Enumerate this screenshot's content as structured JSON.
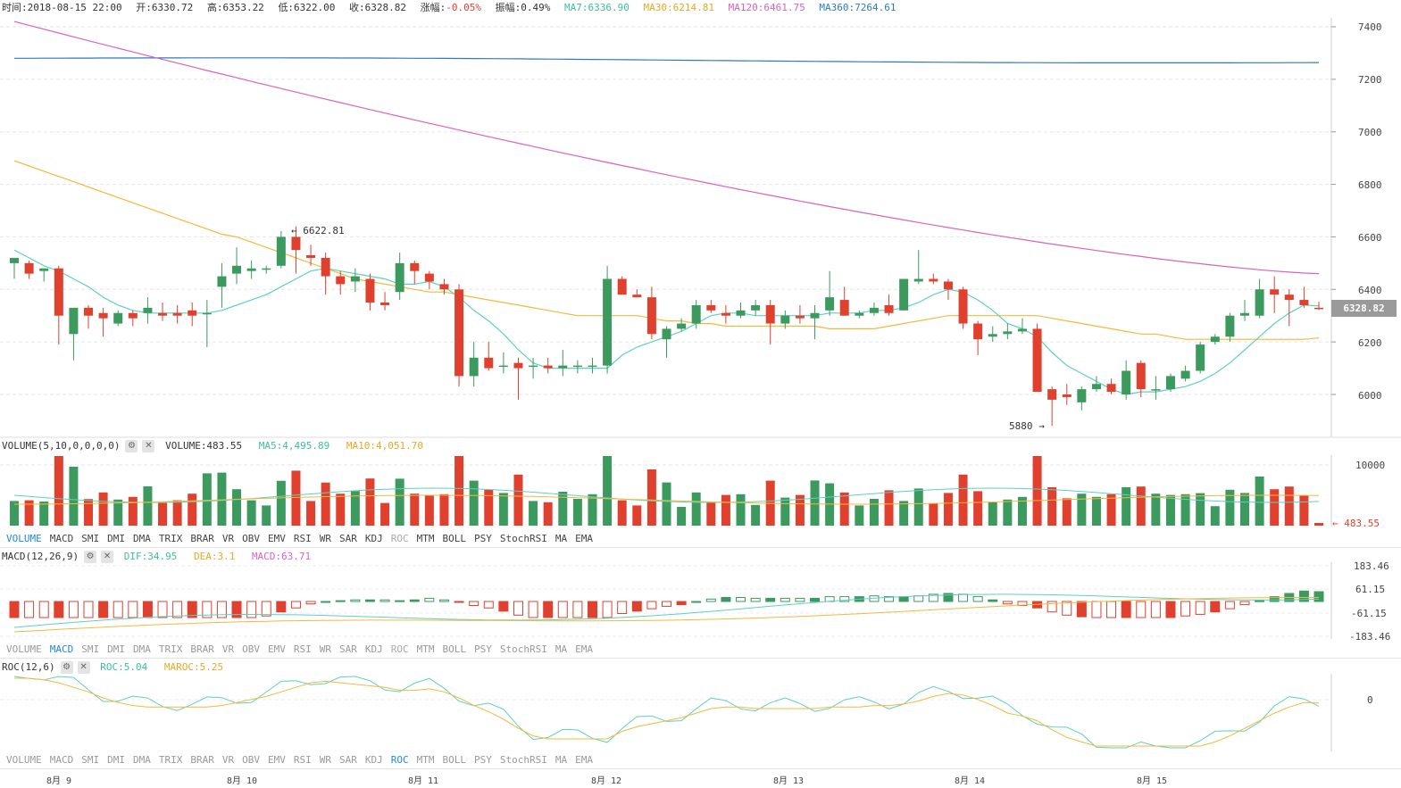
{
  "info": {
    "time": "时间:2018-08-15 22:00",
    "open": "开:6330.72",
    "high": "高:6353.22",
    "low": "低:6322.00",
    "close": "收:6328.82",
    "change_label": "涨幅:",
    "change_value": "-0.05%",
    "amplitude": "振幅:0.49%",
    "ma7": "MA7:6336.90",
    "ma30": "MA30:6214.81",
    "ma120": "MA120:6461.75",
    "ma360": "MA360:7264.61"
  },
  "colors": {
    "up": "#e0402e",
    "down": "#3c9a5f",
    "ma7": "#5fd0c0",
    "ma30": "#f4b93c",
    "ma120": "#d863c0",
    "ma360": "#2f7ac0"
  },
  "price_axis": {
    "ticks": [
      "7400",
      "7200",
      "7000",
      "6800",
      "6600",
      "6400",
      "6200",
      "6000"
    ],
    "current": "6328.82",
    "high_mark": "6622.81",
    "low_mark": "5880"
  },
  "volume": {
    "title": "VOLUME(5,10,0,0,0,0)",
    "value": "VOLUME:483.55",
    "ma5": "MA5:4,495.89",
    "ma10": "MA10:4,051.70",
    "axis_top": "10000",
    "current": "483.55"
  },
  "macd": {
    "title": "MACD(12,26,9)",
    "dif": "DIF:34.95",
    "dea": "DEA:3.1",
    "macd": "MACD:63.71",
    "ticks": [
      "183.46",
      "61.15",
      "-61.15",
      "-183.46"
    ]
  },
  "roc": {
    "title": "ROC(12,6)",
    "roc": "ROC:5.04",
    "maroc": "MAROC:5.25",
    "tick": "0"
  },
  "indicator_tabs": [
    "VOLUME",
    "MACD",
    "SMI",
    "DMI",
    "DMA",
    "TRIX",
    "BRAR",
    "VR",
    "OBV",
    "EMV",
    "RSI",
    "WR",
    "SAR",
    "KDJ",
    "ROC",
    "MTM",
    "BOLL",
    "PSY",
    "StochRSI",
    "MA",
    "EMA"
  ],
  "active_tabs": [
    "VOLUME",
    "MACD",
    "ROC"
  ],
  "x_labels": [
    "8月 9",
    "8月 10",
    "8月 11",
    "8月 12",
    "8月 13",
    "8月 14",
    "8月 15"
  ],
  "chart_data": {
    "type": "candlestick",
    "candles_ohlc": [
      [
        6500,
        6520,
        6440,
        6520
      ],
      [
        6500,
        6510,
        6440,
        6460
      ],
      [
        6470,
        6480,
        6430,
        6480
      ],
      [
        6480,
        6490,
        6190,
        6300
      ],
      [
        6230,
        6330,
        6130,
        6330
      ],
      [
        6330,
        6340,
        6250,
        6300
      ],
      [
        6310,
        6330,
        6220,
        6290
      ],
      [
        6270,
        6320,
        6260,
        6310
      ],
      [
        6310,
        6320,
        6260,
        6290
      ],
      [
        6310,
        6370,
        6270,
        6330
      ],
      [
        6310,
        6350,
        6280,
        6300
      ],
      [
        6310,
        6340,
        6270,
        6300
      ],
      [
        6320,
        6350,
        6260,
        6300
      ],
      [
        6310,
        6360,
        6180,
        6310
      ],
      [
        6410,
        6500,
        6330,
        6450
      ],
      [
        6460,
        6560,
        6420,
        6490
      ],
      [
        6470,
        6510,
        6440,
        6480
      ],
      [
        6480,
        6490,
        6460,
        6480
      ],
      [
        6490,
        6622,
        6480,
        6600
      ],
      [
        6600,
        6640,
        6460,
        6550
      ],
      [
        6530,
        6570,
        6490,
        6520
      ],
      [
        6520,
        6540,
        6380,
        6450
      ],
      [
        6450,
        6470,
        6380,
        6420
      ],
      [
        6430,
        6480,
        6390,
        6450
      ],
      [
        6440,
        6460,
        6320,
        6350
      ],
      [
        6350,
        6390,
        6320,
        6340
      ],
      [
        6390,
        6540,
        6360,
        6500
      ],
      [
        6500,
        6510,
        6420,
        6470
      ],
      [
        6460,
        6470,
        6400,
        6430
      ],
      [
        6420,
        6440,
        6380,
        6400
      ],
      [
        6400,
        6420,
        6030,
        6070
      ],
      [
        6070,
        6200,
        6030,
        6140
      ],
      [
        6140,
        6200,
        6090,
        6100
      ],
      [
        6110,
        6160,
        6080,
        6110
      ],
      [
        6120,
        6140,
        5980,
        6100
      ],
      [
        6110,
        6140,
        6060,
        6110
      ],
      [
        6110,
        6140,
        6080,
        6100
      ],
      [
        6100,
        6170,
        6070,
        6110
      ],
      [
        6110,
        6130,
        6080,
        6110
      ],
      [
        6110,
        6140,
        6080,
        6110
      ],
      [
        6110,
        6490,
        6080,
        6440
      ],
      [
        6440,
        6450,
        6380,
        6380
      ],
      [
        6380,
        6400,
        6370,
        6370
      ],
      [
        6370,
        6410,
        6210,
        6230
      ],
      [
        6210,
        6260,
        6140,
        6250
      ],
      [
        6250,
        6290,
        6240,
        6270
      ],
      [
        6270,
        6360,
        6250,
        6340
      ],
      [
        6340,
        6360,
        6310,
        6320
      ],
      [
        6310,
        6340,
        6270,
        6300
      ],
      [
        6300,
        6350,
        6290,
        6320
      ],
      [
        6320,
        6360,
        6300,
        6340
      ],
      [
        6340,
        6360,
        6190,
        6270
      ],
      [
        6270,
        6320,
        6250,
        6300
      ],
      [
        6300,
        6340,
        6270,
        6290
      ],
      [
        6290,
        6340,
        6210,
        6310
      ],
      [
        6320,
        6470,
        6300,
        6370
      ],
      [
        6360,
        6410,
        6300,
        6300
      ],
      [
        6300,
        6320,
        6290,
        6310
      ],
      [
        6310,
        6350,
        6300,
        6330
      ],
      [
        6340,
        6380,
        6300,
        6310
      ],
      [
        6320,
        6400,
        6320,
        6440
      ],
      [
        6430,
        6550,
        6420,
        6440
      ],
      [
        6440,
        6460,
        6420,
        6430
      ],
      [
        6430,
        6440,
        6360,
        6400
      ],
      [
        6400,
        6410,
        6250,
        6270
      ],
      [
        6270,
        6280,
        6150,
        6210
      ],
      [
        6220,
        6260,
        6200,
        6230
      ],
      [
        6230,
        6270,
        6210,
        6240
      ],
      [
        6240,
        6290,
        6230,
        6250
      ],
      [
        6250,
        6270,
        6010,
        6010
      ],
      [
        6020,
        6030,
        5880,
        5980
      ],
      [
        6000,
        6040,
        5960,
        5990
      ],
      [
        5970,
        6030,
        5940,
        6020
      ],
      [
        6020,
        6070,
        6010,
        6040
      ],
      [
        6040,
        6060,
        6000,
        6010
      ],
      [
        6000,
        6130,
        5980,
        6090
      ],
      [
        6120,
        6130,
        5990,
        6020
      ],
      [
        6020,
        6070,
        5980,
        6020
      ],
      [
        6020,
        6080,
        6010,
        6070
      ],
      [
        6060,
        6110,
        6050,
        6090
      ],
      [
        6090,
        6200,
        6080,
        6190
      ],
      [
        6200,
        6230,
        6190,
        6220
      ],
      [
        6220,
        6310,
        6200,
        6300
      ],
      [
        6300,
        6360,
        6280,
        6310
      ],
      [
        6300,
        6440,
        6290,
        6400
      ],
      [
        6400,
        6450,
        6310,
        6380
      ],
      [
        6380,
        6400,
        6260,
        6360
      ],
      [
        6360,
        6410,
        6330,
        6340
      ],
      [
        6330,
        6353,
        6322,
        6329
      ]
    ],
    "ma7": [
      6550,
      6520,
      6490,
      6470,
      6440,
      6410,
      6370,
      6340,
      6320,
      6310,
      6310,
      6310,
      6310,
      6310,
      6320,
      6340,
      6360,
      6380,
      6410,
      6440,
      6470,
      6480,
      6470,
      6460,
      6450,
      6440,
      6420,
      6420,
      6430,
      6410,
      6370,
      6320,
      6280,
      6230,
      6170,
      6120,
      6100,
      6100,
      6100,
      6100,
      6100,
      6150,
      6180,
      6200,
      6220,
      6240,
      6270,
      6300,
      6310,
      6310,
      6300,
      6300,
      6300,
      6300,
      6300,
      6310,
      6310,
      6310,
      6320,
      6320,
      6330,
      6350,
      6380,
      6400,
      6390,
      6360,
      6320,
      6270,
      6250,
      6220,
      6160,
      6110,
      6080,
      6050,
      6020,
      6000,
      6010,
      6010,
      6020,
      6030,
      6050,
      6080,
      6120,
      6170,
      6220,
      6270,
      6310,
      6340,
      6337
    ],
    "ma30": [
      6890,
      6870,
      6850,
      6830,
      6810,
      6790,
      6770,
      6750,
      6730,
      6710,
      6690,
      6670,
      6650,
      6630,
      6610,
      6600,
      6580,
      6560,
      6540,
      6520,
      6500,
      6480,
      6460,
      6440,
      6430,
      6420,
      6410,
      6400,
      6390,
      6390,
      6380,
      6370,
      6360,
      6350,
      6340,
      6330,
      6320,
      6310,
      6300,
      6300,
      6300,
      6300,
      6300,
      6290,
      6280,
      6280,
      6270,
      6270,
      6260,
      6260,
      6260,
      6260,
      6260,
      6260,
      6260,
      6250,
      6250,
      6250,
      6250,
      6260,
      6270,
      6280,
      6290,
      6300,
      6300,
      6300,
      6300,
      6300,
      6300,
      6300,
      6290,
      6280,
      6270,
      6260,
      6250,
      6240,
      6230,
      6230,
      6220,
      6210,
      6210,
      6210,
      6210,
      6210,
      6210,
      6210,
      6210,
      6210,
      6215
    ]
  }
}
